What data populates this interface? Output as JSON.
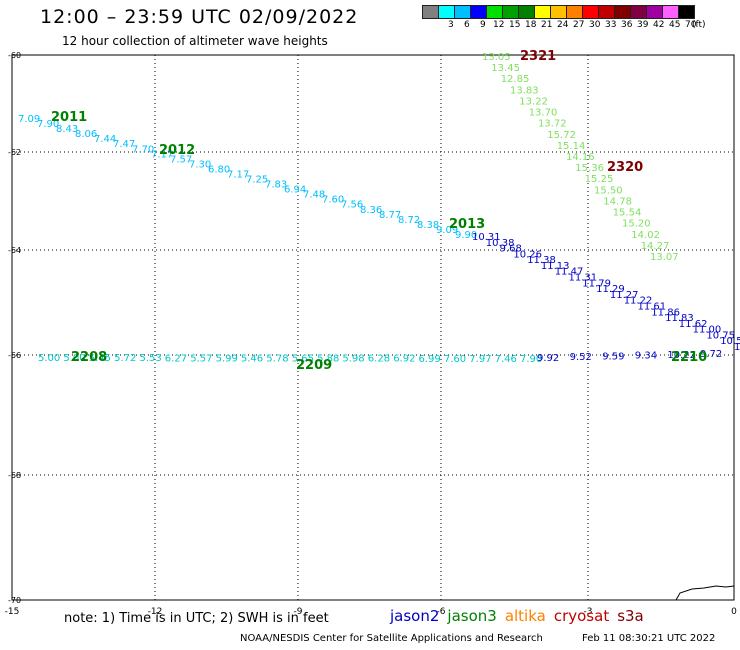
{
  "header": {
    "title": "12:00 – 23:59 UTC 02/09/2022",
    "subtitle": "12 hour collection of altimeter wave heights"
  },
  "legend": {
    "unit": "(ft)",
    "bins": [
      {
        "color": "#808080",
        "label": ""
      },
      {
        "color": "#00ffff",
        "label": "3"
      },
      {
        "color": "#00bfff",
        "label": "6"
      },
      {
        "color": "#0000ff",
        "label": "9"
      },
      {
        "color": "#00e000",
        "label": "12"
      },
      {
        "color": "#00a000",
        "label": "15"
      },
      {
        "color": "#008000",
        "label": "18"
      },
      {
        "color": "#ffff00",
        "label": "21"
      },
      {
        "color": "#ffc000",
        "label": "24"
      },
      {
        "color": "#ff8000",
        "label": "27"
      },
      {
        "color": "#ff0000",
        "label": "30"
      },
      {
        "color": "#c00000",
        "label": "33"
      },
      {
        "color": "#800000",
        "label": "36"
      },
      {
        "color": "#800040",
        "label": "39"
      },
      {
        "color": "#a000a0",
        "label": "42"
      },
      {
        "color": "#ff60ff",
        "label": "45"
      },
      {
        "color": "#000000",
        "label": "70"
      }
    ]
  },
  "map": {
    "lon_ticks": [
      "-15",
      "-12",
      "-9",
      "-6",
      "-3",
      "0"
    ],
    "lat_ticks": [
      "-60",
      "-62",
      "-64",
      "-66",
      "-68",
      "-70"
    ],
    "grid": "dotted"
  },
  "tracks": [
    {
      "color": "#00bfff",
      "values": [
        "7.09",
        "7.90",
        "8.43",
        "8.06",
        "7.44",
        "7.47",
        "7.70",
        "7.17",
        "7.57",
        "7.30",
        "6.80",
        "7.17",
        "7.25",
        "7.83",
        "6.94",
        "7.48",
        "7.60",
        "7.56",
        "8.36",
        "8.77",
        "8.72",
        "8.38",
        "9.09",
        "9.90"
      ]
    },
    {
      "color": "#0000c8",
      "values": [
        "10.31",
        "10.38",
        "9.68",
        "10.26",
        "11.38",
        "11.13",
        "11.47",
        "11.31",
        "11.79",
        "11.29",
        "11.27",
        "11.22",
        "11.61",
        "11.86",
        "11.83",
        "11.62",
        "11.00",
        "10.75",
        "10.50",
        "10.65"
      ]
    },
    {
      "color": "#80e060",
      "values": [
        "13.05",
        "13.45",
        "12.85",
        "13.83",
        "13.22",
        "13.70",
        "13.72",
        "15.72",
        "15.14",
        "14.16",
        "15.36",
        "15.25",
        "15.50",
        "14.78",
        "15.54",
        "15.20",
        "14.02",
        "14.27",
        "13.07"
      ]
    },
    {
      "color": "#00c8c8",
      "values": [
        "5.00",
        "5.00",
        "5.45",
        "5.72",
        "5.53",
        "6.27",
        "5.57",
        "5.99",
        "5.46",
        "5.78",
        "5.65",
        "5.88",
        "5.98",
        "6.28",
        "6.92",
        "6.99",
        "7.60",
        "7.97",
        "7.46",
        "7.90"
      ]
    },
    {
      "color": "#0000c8",
      "values": [
        "9.92",
        "9.52",
        "9.59",
        "9.34",
        "10.22",
        "9.72"
      ]
    }
  ],
  "time_labels": [
    {
      "text": "2321",
      "color": "#800000"
    },
    {
      "text": "2320",
      "color": "#800000"
    },
    {
      "text": "2011",
      "color": "#008000"
    },
    {
      "text": "2012",
      "color": "#008000"
    },
    {
      "text": "2013",
      "color": "#008000"
    },
    {
      "text": "2208",
      "color": "#008000"
    },
    {
      "text": "2209",
      "color": "#008000"
    },
    {
      "text": "2210",
      "color": "#008000"
    }
  ],
  "footer": {
    "note": "note: 1) Time is in UTC; 2) SWH is in feet",
    "missions": [
      {
        "name": "jason2",
        "color": "#0000c8"
      },
      {
        "name": "jason3",
        "color": "#008000"
      },
      {
        "name": "altika",
        "color": "#ff8000"
      },
      {
        "name": "cryosat",
        "color": "#c00000"
      },
      {
        "name": "s3a",
        "color": "#800000"
      }
    ],
    "credit": "NOAA/NESDIS Center for Satellite Applications and Research",
    "timestamp": "Feb 11 08:30:21 UTC 2022"
  }
}
